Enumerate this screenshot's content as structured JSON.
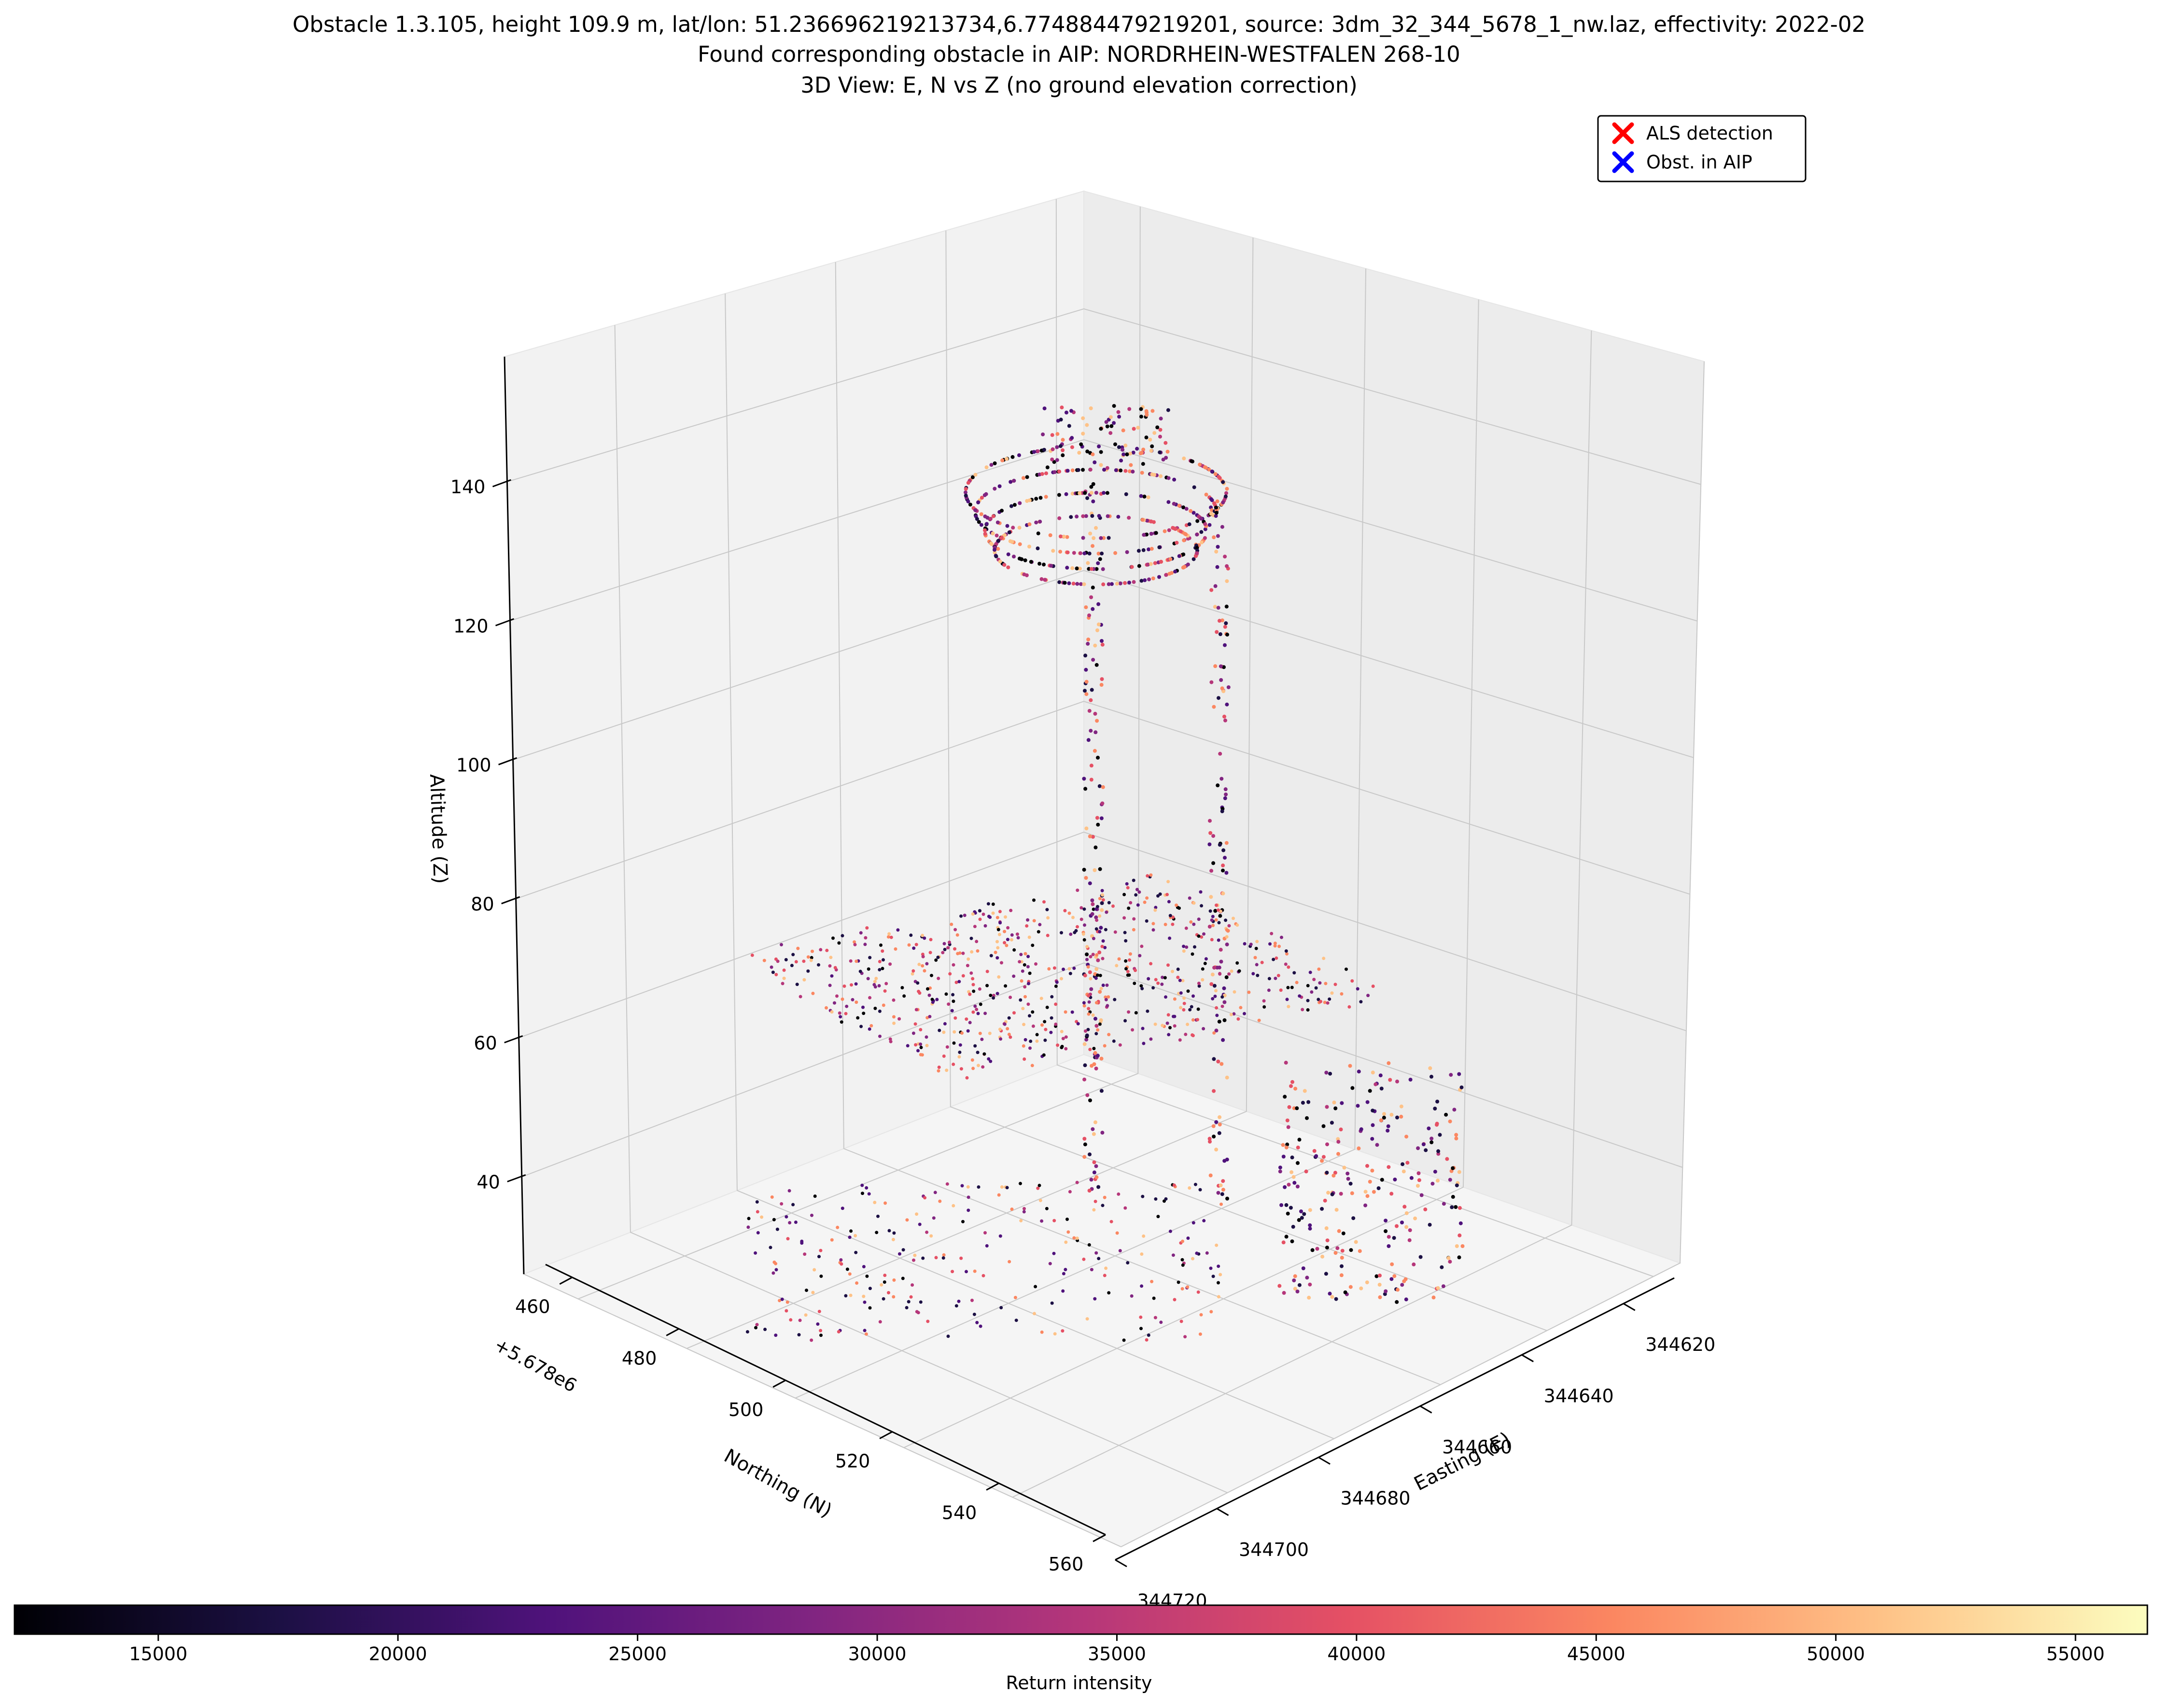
{
  "chart_data": {
    "type": "scatter",
    "title_lines": [
      "Obstacle 1.3.105, height 109.9 m, lat/lon: 51.236696219213734,6.774884479219201, source: 3dm_32_344_5678_1_nw.laz, effectivity: 2022-02",
      "Found corresponding obstacle in AIP: NORDRHEIN-WESTFALEN 268-10",
      "3D View: E, N vs Z (no ground elevation correction)"
    ],
    "xlabel": "Easting (E)",
    "ylabel": "Northing (N)",
    "zlabel": "Altitude (Z)",
    "y_offset_label": "+5.678e6",
    "x_ticks": [
      "344620",
      "344640",
      "344660",
      "344680",
      "344700",
      "344720"
    ],
    "y_ticks": [
      "460",
      "480",
      "500",
      "520",
      "540",
      "560"
    ],
    "z_ticks": [
      "40",
      "60",
      "80",
      "100",
      "120",
      "140"
    ],
    "xlim": [
      344610,
      344720
    ],
    "ylim": [
      455,
      560
    ],
    "zlim": [
      26,
      158
    ],
    "legend": {
      "placement": "upper-right",
      "entries": [
        {
          "label": "ALS detection",
          "marker": "x",
          "color": "#ff0000"
        },
        {
          "label": "Obst. in AIP",
          "marker": "x",
          "color": "#0000ff"
        }
      ]
    },
    "colorbar": {
      "label": "Return intensity",
      "colormap": "magma",
      "range": [
        12000,
        56500
      ],
      "ticks": [
        "15000",
        "20000",
        "25000",
        "30000",
        "35000",
        "40000",
        "45000",
        "50000",
        "55000"
      ]
    },
    "view": {
      "elev_deg": 20,
      "azim_deg": 45
    }
  }
}
